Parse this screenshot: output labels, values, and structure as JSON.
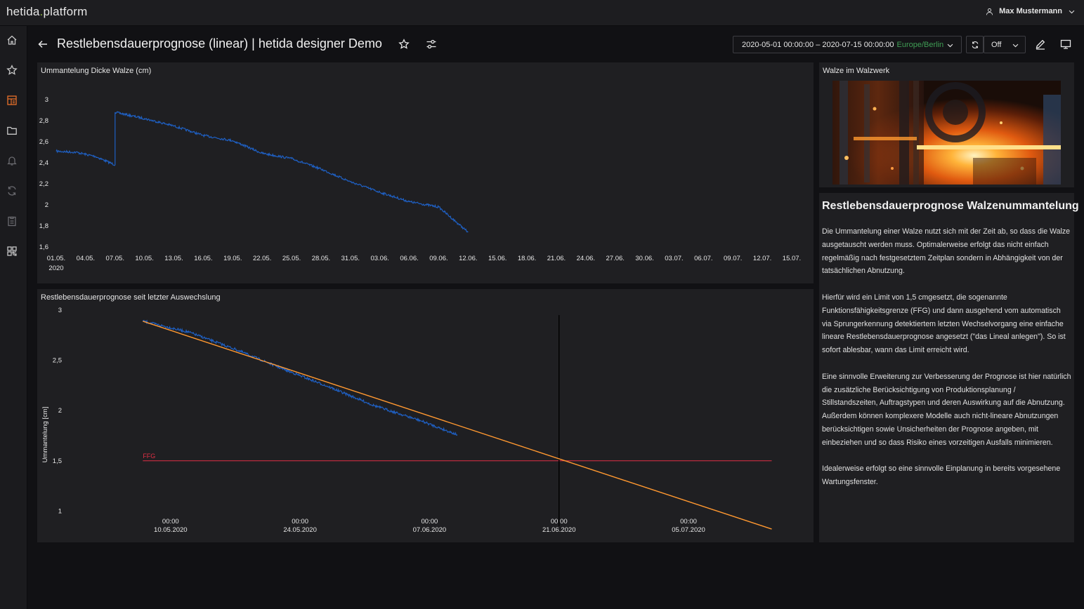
{
  "app": {
    "logo_main": "hetida",
    "logo_dot": ".",
    "logo_sub": "platform",
    "user_name": "Max Mustermann"
  },
  "sidebar": {
    "items": [
      "home-icon",
      "starred-icon",
      "dashboards-icon",
      "folder-icon",
      "alerting-icon",
      "sync-icon",
      "clipboard-icon",
      "qr-icon"
    ],
    "active": "dashboards-icon",
    "accent": "#e8702a"
  },
  "header": {
    "title": "Restlebensdauerprognose (linear) | hetida designer Demo",
    "time_range": "2020-05-01 00:00:00 – 2020-07-15 00:00:00",
    "timezone": "Europe/Berlin",
    "refresh_interval": "Off"
  },
  "panels": {
    "p1": {
      "title": "Ummantelung Dicke Walze (cm)"
    },
    "p2": {
      "title": "Restlebensdauerprognose seit letzter Auswechslung"
    },
    "p3": {
      "title": "Walze im Walzwerk"
    },
    "p4": {
      "heading": "Restlebensdauerprognose Walzenummantelung",
      "paragraphs": [
        "Die Ummantelung einer Walze nutzt sich mit der Zeit ab, so dass die Walze ausgetauscht werden muss. Optimalerweise erfolgt das nicht einfach regelmäßig nach festgesetztem Zeitplan sondern in Abhängigkeit von der tatsächlichen Abnutzung.",
        "Hierfür wird ein Limit von 1,5 cmgesetzt, die sogenannte Funktionsfähigkeitsgrenze (FFG) und dann ausgehend vom automatisch via Sprungerkennung detektiertem letzten Wechselvorgang eine einfache lineare Restlebensdauerprognose angesetzt (\"das Lineal anlegen\"). So ist sofort ablesbar, wann das Limit erreicht wird.",
        "Eine sinnvolle Erweiterung zur Verbesserung der Prognose ist hier natürlich die zusätzliche Berücksichtigung von Produktionsplanung / Stillstandszeiten, Auftragstypen und deren Auswirkung auf die Abnutzung. Außerdem können komplexere Modelle auch nicht-lineare Abnutzungen berücksichtigen sowie Unsicherheiten der Prognose angeben, mit einbeziehen und so dass Risiko eines vorzeitigen Ausfalls minimieren.",
        "Idealerweise erfolgt so eine sinnvolle Einplanung in bereits vorgesehene Wartungsfenster."
      ]
    }
  },
  "chart_data": [
    {
      "type": "line",
      "title": "Ummantelung Dicke Walze (cm)",
      "x_tick_labels": [
        "01.05.",
        "04.05.",
        "07.05.",
        "10.05.",
        "13.05.",
        "16.05.",
        "19.05.",
        "22.05.",
        "25.05.",
        "28.05.",
        "31.05.",
        "03.06.",
        "06.06.",
        "09.06.",
        "12.06.",
        "15.06.",
        "18.06.",
        "21.06.",
        "24.06.",
        "27.06.",
        "30.06.",
        "03.07.",
        "06.07.",
        "09.07.",
        "12.07.",
        "15.07."
      ],
      "x_year_label": "2020",
      "y_tick_labels": [
        "1,6",
        "1,8",
        "2",
        "2,2",
        "2,4",
        "2,6",
        "2,8",
        "3"
      ],
      "ylim": [
        1.6,
        3.0
      ],
      "xlim": [
        "2020-05-01",
        "2020-07-15"
      ],
      "grid": false,
      "series": [
        {
          "color": "#1f60c4",
          "x": [
            "2020-05-01",
            "2020-05-03",
            "2020-05-05",
            "2020-05-07",
            "2020-05-07",
            "2020-05-10",
            "2020-05-13",
            "2020-05-16",
            "2020-05-19",
            "2020-05-22",
            "2020-05-25",
            "2020-05-28",
            "2020-05-31",
            "2020-06-03",
            "2020-06-06",
            "2020-06-09",
            "2020-06-12"
          ],
          "y": [
            2.51,
            2.5,
            2.46,
            2.38,
            2.88,
            2.82,
            2.75,
            2.66,
            2.61,
            2.49,
            2.44,
            2.34,
            2.22,
            2.12,
            2.03,
            1.98,
            1.74
          ]
        }
      ]
    },
    {
      "type": "line",
      "title": "Restlebensdauerprognose seit letzter Auswechslung",
      "ylabel": "Ummantelung [cm]",
      "y_tick_labels": [
        "1",
        "1,5",
        "2",
        "2,5",
        "3"
      ],
      "ylim": [
        0.8,
        3.0
      ],
      "x_tick_labels": [
        {
          "time": "00:00",
          "date": "10.05.2020"
        },
        {
          "time": "00:00",
          "date": "24.05.2020"
        },
        {
          "time": "00:00",
          "date": "07.06.2020"
        },
        {
          "time": "00:00",
          "date": "21.06.2020"
        },
        {
          "time": "00:00",
          "date": "05.07.2020"
        }
      ],
      "xlim": [
        "2020-04-29",
        "2020-07-17"
      ],
      "grid": false,
      "threshold": {
        "label": "FFG",
        "value": 1.5,
        "color": "#e02f44",
        "from": "2020-05-07",
        "to": "2020-07-14"
      },
      "marker_date": "2020-06-21",
      "series": [
        {
          "color": "#1f60c4",
          "x": [
            "2020-05-07",
            "2020-05-12",
            "2020-05-17",
            "2020-05-22",
            "2020-05-27",
            "2020-06-01",
            "2020-06-06",
            "2020-06-10"
          ],
          "y": [
            2.89,
            2.78,
            2.61,
            2.42,
            2.24,
            2.05,
            1.9,
            1.76
          ]
        },
        {
          "color": "#ff9830",
          "x": [
            "2020-05-07",
            "2020-07-14"
          ],
          "y": [
            2.89,
            0.82
          ]
        }
      ]
    }
  ]
}
